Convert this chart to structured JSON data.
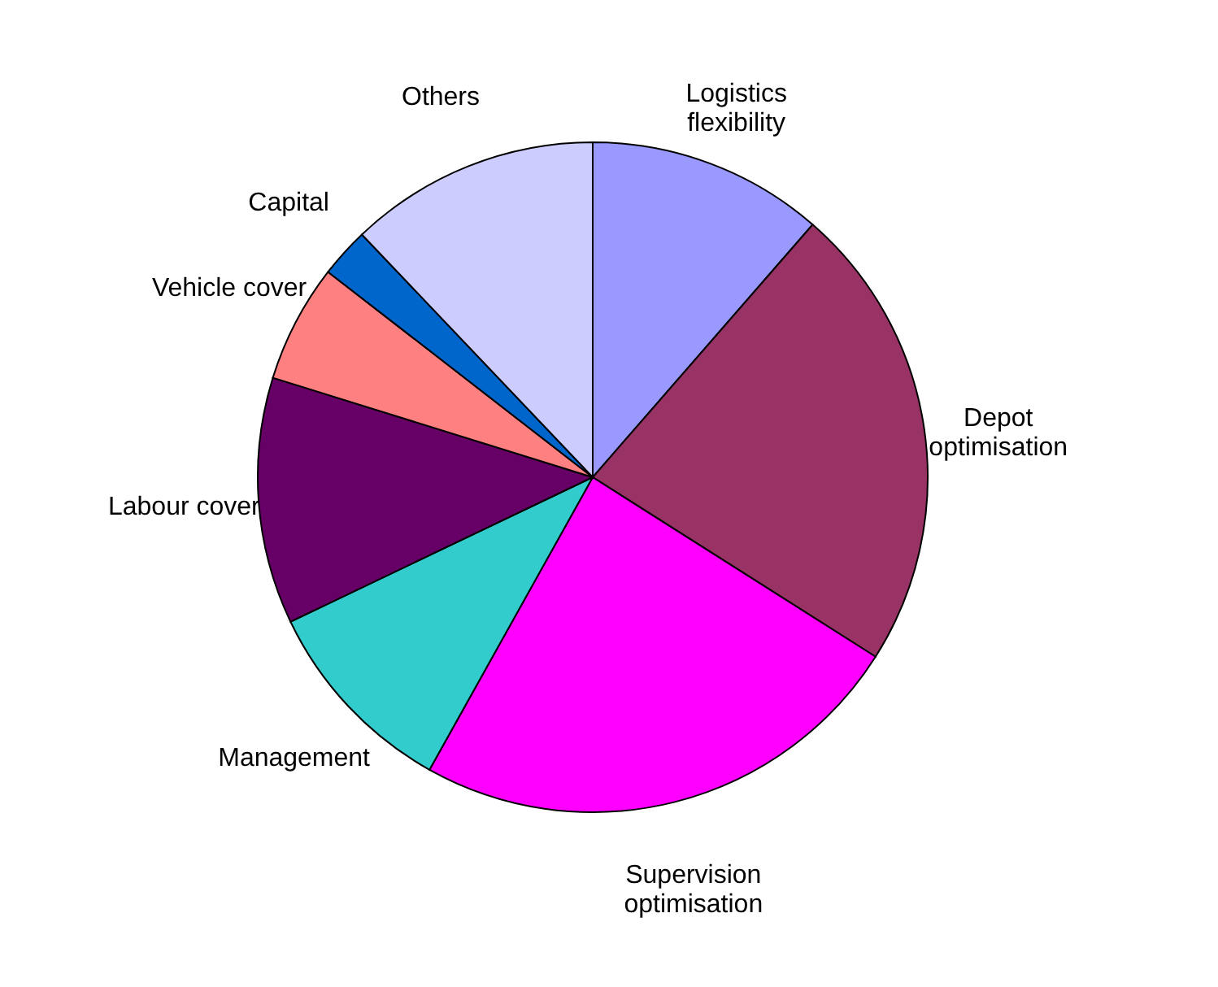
{
  "chart_data": {
    "type": "pie",
    "categories": [
      "Logistics\nflexibility",
      "Depot\noptimisation",
      "Supervision\noptimisation",
      "Management",
      "Labour cover",
      "Vehicle cover",
      "Capital",
      "Others"
    ],
    "values": [
      11.4,
      22.6,
      24.1,
      9.8,
      11.9,
      5.7,
      2.4,
      12.1
    ],
    "colors": [
      "#9999ff",
      "#993366",
      "#ff00ff",
      "#33cccc",
      "#660066",
      "#ff8080",
      "#0066cc",
      "#ccccff"
    ],
    "legend": false
  }
}
